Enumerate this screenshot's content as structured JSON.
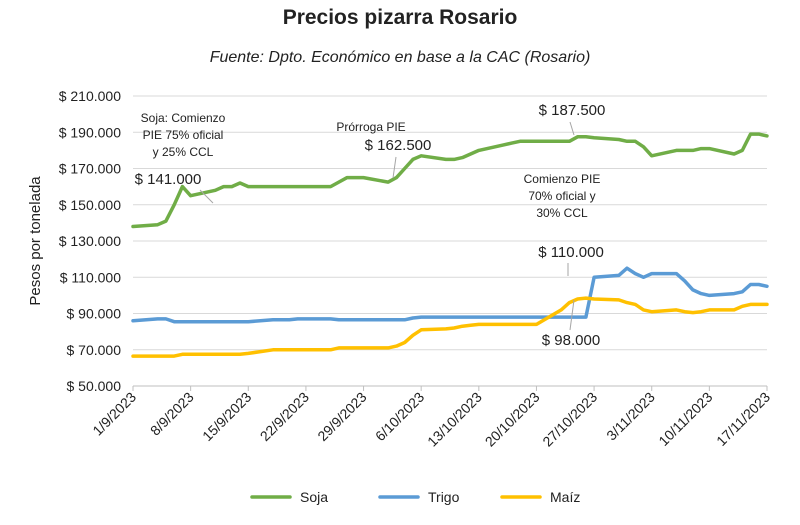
{
  "chart_data": {
    "type": "line",
    "title": "Precios pizarra Rosario",
    "subtitle": "Fuente: Dpto. Económico en base a la CAC (Rosario)",
    "ylabel": "Pesos por tonelada",
    "xlabel": "",
    "ylim": [
      50000,
      210000
    ],
    "yticks": [
      50000,
      70000,
      90000,
      110000,
      130000,
      150000,
      170000,
      190000,
      210000
    ],
    "ytick_labels": [
      "$ 50.000",
      "$ 70.000",
      "$ 90.000",
      "$ 110.000",
      "$ 130.000",
      "$ 150.000",
      "$ 170.000",
      "$ 190.000",
      "$ 210.000"
    ],
    "xlim": [
      "2023-09-01",
      "2023-11-17"
    ],
    "xticks": [
      "2023-09-01",
      "2023-09-08",
      "2023-09-15",
      "2023-09-22",
      "2023-09-29",
      "2023-10-06",
      "2023-10-13",
      "2023-10-20",
      "2023-10-27",
      "2023-11-03",
      "2023-11-10",
      "2023-11-17"
    ],
    "xtick_labels": [
      "1/9/2023",
      "8/9/2023",
      "15/9/2023",
      "22/9/2023",
      "29/9/2023",
      "6/10/2023",
      "13/10/2023",
      "20/10/2023",
      "27/10/2023",
      "3/11/2023",
      "10/11/2023",
      "17/11/2023"
    ],
    "grid": true,
    "legend": "bottom",
    "x": [
      "2023-09-01",
      "2023-09-04",
      "2023-09-05",
      "2023-09-06",
      "2023-09-07",
      "2023-09-08",
      "2023-09-11",
      "2023-09-12",
      "2023-09-13",
      "2023-09-14",
      "2023-09-15",
      "2023-09-18",
      "2023-09-19",
      "2023-09-20",
      "2023-09-21",
      "2023-09-22",
      "2023-09-25",
      "2023-09-26",
      "2023-09-27",
      "2023-09-28",
      "2023-09-29",
      "2023-10-02",
      "2023-10-03",
      "2023-10-04",
      "2023-10-05",
      "2023-10-06",
      "2023-10-09",
      "2023-10-10",
      "2023-10-11",
      "2023-10-12",
      "2023-10-13",
      "2023-10-16",
      "2023-10-17",
      "2023-10-18",
      "2023-10-19",
      "2023-10-20",
      "2023-10-23",
      "2023-10-24",
      "2023-10-25",
      "2023-10-26",
      "2023-10-27",
      "2023-10-30",
      "2023-10-31",
      "2023-11-01",
      "2023-11-02",
      "2023-11-03",
      "2023-11-06",
      "2023-11-07",
      "2023-11-08",
      "2023-11-09",
      "2023-11-10",
      "2023-11-13",
      "2023-11-14",
      "2023-11-15",
      "2023-11-16",
      "2023-11-17"
    ],
    "series": [
      {
        "name": "Soja",
        "color": "#70ad47",
        "values": [
          138000,
          139000,
          141000,
          150000,
          160000,
          155000,
          158000,
          160000,
          160000,
          162000,
          160000,
          160000,
          160000,
          160000,
          160000,
          160000,
          160000,
          162500,
          165000,
          165000,
          165000,
          162500,
          165000,
          170000,
          175000,
          177000,
          175000,
          175000,
          176000,
          178000,
          180000,
          183000,
          184000,
          185000,
          185000,
          185000,
          185000,
          185000,
          187500,
          187500,
          187000,
          186000,
          185000,
          185000,
          182000,
          177000,
          180000,
          180000,
          180000,
          181000,
          181000,
          178000,
          180000,
          189000,
          189000,
          188000
        ]
      },
      {
        "name": "Trigo",
        "color": "#5b9bd5",
        "values": [
          86000,
          87000,
          87000,
          85500,
          85500,
          85500,
          85500,
          85500,
          85500,
          85500,
          85500,
          86500,
          86500,
          86500,
          87000,
          87000,
          87000,
          86500,
          86500,
          86500,
          86500,
          86500,
          86500,
          86500,
          87500,
          88000,
          88000,
          88000,
          88000,
          88000,
          88000,
          88000,
          88000,
          88000,
          88000,
          88000,
          88000,
          88000,
          88000,
          88000,
          110000,
          111000,
          115000,
          112000,
          110000,
          112000,
          112000,
          108000,
          103000,
          101000,
          100000,
          101000,
          102000,
          106000,
          106000,
          105000
        ]
      },
      {
        "name": "Maíz",
        "color": "#ffc000",
        "values": [
          66500,
          66500,
          66500,
          66500,
          67500,
          67500,
          67500,
          67500,
          67500,
          67500,
          68000,
          70000,
          70000,
          70000,
          70000,
          70000,
          70000,
          71000,
          71000,
          71000,
          71000,
          71000,
          72000,
          74000,
          78000,
          81000,
          81500,
          82000,
          83000,
          83500,
          84000,
          84000,
          84000,
          84000,
          84000,
          84000,
          92000,
          96000,
          98000,
          98500,
          98000,
          97500,
          96000,
          95000,
          92000,
          91000,
          92000,
          91000,
          90500,
          91000,
          92000,
          92000,
          94000,
          95000,
          95000,
          95000
        ]
      }
    ],
    "annotations": [
      {
        "text": "Soja: Comienzo",
        "font": 12
      },
      {
        "text": "PIE 75% oficial",
        "font": 12
      },
      {
        "text": "y 25% CCL",
        "font": 12
      },
      {
        "text": "$ 141.000",
        "font": 15
      },
      {
        "text": "Prórroga PIE",
        "font": 12
      },
      {
        "text": "$ 162.500",
        "font": 15
      },
      {
        "text": "$ 187.500",
        "font": 15
      },
      {
        "text": "Comienzo PIE",
        "font": 12
      },
      {
        "text": "70% oficial y",
        "font": 12
      },
      {
        "text": "30% CCL",
        "font": 12
      },
      {
        "text": "$ 110.000",
        "font": 15
      },
      {
        "text": "$ 98.000",
        "font": 15
      }
    ]
  }
}
